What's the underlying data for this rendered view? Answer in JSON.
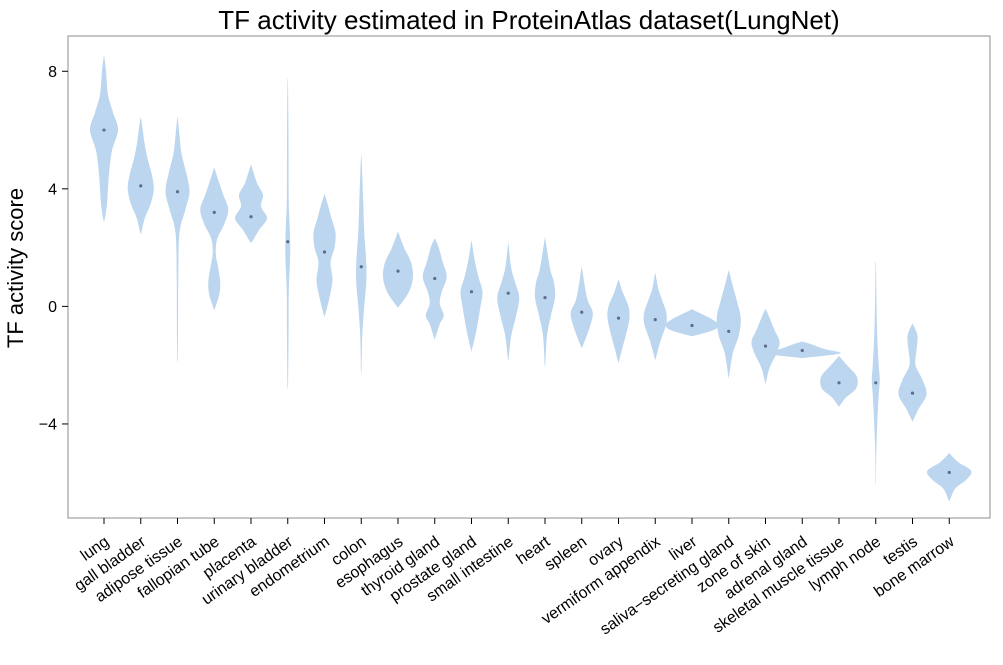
{
  "chart_data": {
    "type": "violin",
    "title": "TF activity estimated in ProteinAtlas dataset(LungNet)",
    "xlabel": "",
    "ylabel": "TF activity score",
    "ylim": [
      -7.2,
      9.2
    ],
    "yticks": [
      -4,
      0,
      4,
      8
    ],
    "grid": false,
    "violin_color": "#bcd6ef",
    "median_color": "#5a6e8c",
    "categories": [
      "lung",
      "gall bladder",
      "adipose tissue",
      "fallopian tube",
      "placenta",
      "urinary bladder",
      "endometrium",
      "colon",
      "esophagus",
      "thyroid gland",
      "prostate gland",
      "small intestine",
      "heart",
      "spleen",
      "ovary",
      "vermiform appendix",
      "liver",
      "saliva−secreting gland",
      "zone of skin",
      "adrenal gland",
      "skeletal muscle tissue",
      "lymph node",
      "testis",
      "bone marrow"
    ],
    "medians": [
      6.0,
      4.1,
      3.9,
      3.2,
      3.05,
      2.2,
      1.85,
      1.35,
      1.2,
      0.95,
      0.5,
      0.45,
      0.3,
      -0.2,
      -0.4,
      -0.45,
      -0.65,
      -0.85,
      -1.35,
      -1.5,
      -2.6,
      -2.6,
      -2.95,
      -5.65
    ],
    "violins": [
      {
        "y": [
          2.9,
          3.5,
          4.5,
          5.3,
          6.0,
          6.6,
          7.2,
          8.0,
          8.5
        ],
        "w": [
          0.3,
          3,
          5,
          8,
          14,
          9,
          4,
          2,
          0.3
        ]
      },
      {
        "y": [
          2.5,
          3.0,
          3.5,
          4.0,
          4.5,
          5.0,
          5.5,
          6.0,
          6.4
        ],
        "w": [
          0.5,
          4,
          10,
          13,
          11,
          7,
          4,
          2,
          0.3
        ]
      },
      {
        "y": [
          -1.8,
          -0.5,
          1.0,
          2.5,
          3.3,
          3.9,
          4.5,
          5.2,
          5.8,
          6.4
        ],
        "w": [
          0.3,
          0.6,
          0.8,
          2,
          8,
          12,
          9,
          4,
          2,
          0.3
        ]
      },
      {
        "y": [
          -0.1,
          0.4,
          0.8,
          1.3,
          1.8,
          2.3,
          2.8,
          3.3,
          3.8,
          4.3,
          4.7
        ],
        "w": [
          0.4,
          5,
          6,
          4,
          1.5,
          3,
          10,
          14,
          9,
          4,
          0.3
        ]
      },
      {
        "y": [
          2.2,
          2.6,
          3.0,
          3.4,
          3.8,
          4.2,
          4.8
        ],
        "w": [
          1,
          8,
          16,
          10,
          12,
          6,
          0.3
        ]
      },
      {
        "y": [
          -2.7,
          -1.0,
          0.5,
          2.0,
          3.5,
          5.0,
          6.5,
          7.7
        ],
        "w": [
          0.3,
          0.8,
          1.0,
          2.5,
          1.0,
          0.8,
          0.6,
          0.2
        ]
      },
      {
        "y": [
          -0.3,
          0.3,
          0.9,
          1.5,
          2.0,
          2.5,
          3.0,
          3.5,
          3.8
        ],
        "w": [
          0.5,
          5,
          8,
          6,
          10,
          11,
          7,
          3,
          0.3
        ]
      },
      {
        "y": [
          -2.2,
          -1.0,
          0.0,
          0.8,
          1.5,
          2.5,
          3.5,
          4.5,
          5.1
        ],
        "w": [
          0.3,
          1,
          3,
          5,
          5,
          3,
          2,
          1,
          0.2
        ]
      },
      {
        "y": [
          0.0,
          0.5,
          1.0,
          1.5,
          2.0,
          2.5
        ],
        "w": [
          1,
          11,
          15,
          13,
          6,
          0.5
        ]
      },
      {
        "y": [
          -1.1,
          -0.6,
          -0.3,
          0.1,
          0.5,
          1.0,
          1.5,
          2.0,
          2.3
        ],
        "w": [
          0.3,
          5,
          9,
          5,
          7,
          12,
          8,
          4,
          0.3
        ]
      },
      {
        "y": [
          -1.5,
          -0.8,
          0.0,
          0.5,
          1.0,
          1.6,
          2.2
        ],
        "w": [
          0.3,
          5,
          9,
          11,
          7,
          3,
          0.3
        ]
      },
      {
        "y": [
          -1.8,
          -1.0,
          -0.3,
          0.3,
          0.8,
          1.3,
          2.1
        ],
        "w": [
          0.3,
          3,
          8,
          11,
          7,
          3,
          0.3
        ]
      },
      {
        "y": [
          -2.0,
          -1.0,
          -0.3,
          0.3,
          0.8,
          1.3,
          2.3
        ],
        "w": [
          0.3,
          2,
          6,
          10,
          9,
          5,
          0.3
        ]
      },
      {
        "y": [
          -1.4,
          -1.0,
          -0.6,
          -0.2,
          0.2,
          0.7,
          1.3
        ],
        "w": [
          0.3,
          5,
          9,
          11,
          6,
          3,
          0.3
        ]
      },
      {
        "y": [
          -1.9,
          -1.4,
          -0.9,
          -0.4,
          0.0,
          0.5,
          0.9
        ],
        "w": [
          0.3,
          4,
          8,
          11,
          10,
          4,
          0.3
        ]
      },
      {
        "y": [
          -1.8,
          -1.2,
          -0.6,
          -0.2,
          0.2,
          0.6,
          1.1
        ],
        "w": [
          0.3,
          5,
          11,
          11,
          7,
          3,
          0.3
        ]
      },
      {
        "y": [
          -1.0,
          -0.8,
          -0.6,
          -0.4,
          -0.2,
          -0.1
        ],
        "w": [
          2,
          22,
          26,
          18,
          6,
          0.5
        ]
      },
      {
        "y": [
          -2.4,
          -1.6,
          -1.0,
          -0.4,
          0.2,
          0.7,
          1.2
        ],
        "w": [
          0.3,
          4,
          10,
          12,
          8,
          4,
          0.3
        ]
      },
      {
        "y": [
          -2.6,
          -2.1,
          -1.6,
          -1.2,
          -0.8,
          -0.3,
          -0.1
        ],
        "w": [
          0.3,
          4,
          11,
          14,
          9,
          3,
          0.3
        ]
      },
      {
        "y": [
          -1.75,
          -1.6,
          -1.45,
          -1.3,
          -1.2
        ],
        "w": [
          2,
          38,
          22,
          10,
          0.5
        ]
      },
      {
        "y": [
          -3.4,
          -3.1,
          -2.8,
          -2.4,
          -2.0,
          -1.7
        ],
        "w": [
          0.3,
          7,
          17,
          18,
          8,
          0.3
        ]
      },
      {
        "y": [
          -6.0,
          -5.0,
          -4.0,
          -3.0,
          -2.5,
          -2.0,
          -1.0,
          0.0,
          1.0,
          1.5
        ],
        "w": [
          0.2,
          0.5,
          1.5,
          3,
          4,
          3,
          1.5,
          0.8,
          0.4,
          0.2
        ]
      },
      {
        "y": [
          -3.9,
          -3.5,
          -3.0,
          -2.5,
          -2.0,
          -1.5,
          -1.0,
          -0.6
        ],
        "w": [
          0.3,
          6,
          14,
          10,
          3,
          4,
          5,
          0.3
        ]
      },
      {
        "y": [
          -6.6,
          -6.2,
          -5.9,
          -5.6,
          -5.3,
          -5.0
        ],
        "w": [
          0.5,
          6,
          17,
          22,
          9,
          0.3
        ]
      }
    ]
  }
}
